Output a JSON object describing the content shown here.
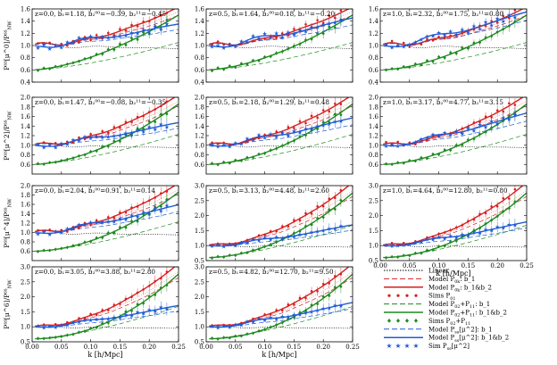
{
  "figure": {
    "xlabel": "k [h/Mpc]",
    "ylabels": [
      "P^{ss}[μ^0]/P^{ss}_{NW}",
      "P^{ss}[μ^2]/P^{ss}_{NW}",
      "P^{ss}[μ^4]/P^{ss}_{NW}",
      "P^{ss}[μ^6]/P^{ss}_{NW}"
    ],
    "colors": {
      "black": "#000000",
      "red": "#d62020",
      "blue": "#1f5bd6",
      "green": "#1f8a1f",
      "light_red": "#e88a8a",
      "light_blue": "#8fb3ee",
      "light_green": "#7fc27f"
    }
  },
  "legend": {
    "items": [
      {
        "label": "Linear",
        "color": "#000000",
        "style": "dotted"
      },
      {
        "label": "Model P_{0k}: b_1",
        "color": "#d62020",
        "style": "dashed"
      },
      {
        "label": "Model P_{0k}: b_1&b_2",
        "color": "#d62020",
        "style": "solid"
      },
      {
        "label": "Sims P_{01}",
        "color": "#d62020",
        "style": "marker"
      },
      {
        "label": "Model P_{02}+P_{11}: b_1",
        "color": "#1f8a1f",
        "style": "dashed"
      },
      {
        "label": "Model P_{02}+P_{11}: b_1&b_2",
        "color": "#1f8a1f",
        "style": "solid"
      },
      {
        "label": "Sims P_{02}+P_{11}",
        "color": "#1f8a1f",
        "style": "marker"
      },
      {
        "label": "Model P_{ss}[μ^2]: b_1",
        "color": "#1f5bd6",
        "style": "dashed"
      },
      {
        "label": "Model P_{ss}[μ^2]: b_1&b_2",
        "color": "#1f5bd6",
        "style": "solid"
      },
      {
        "label": "Sim P_{ss}[μ^2]",
        "color": "#1f5bd6",
        "style": "marker"
      }
    ]
  },
  "chart_data": [
    {
      "type": "line",
      "row": 0,
      "col": 0,
      "title": "z=0.0, b₁=1.18, b₂⁰⁰=−0.39, b₂¹¹=−0.45",
      "xlim": [
        0,
        0.25
      ],
      "ylim": [
        0.4,
        1.6
      ],
      "yticks": [
        0.4,
        0.6,
        0.8,
        1.0,
        1.2,
        1.4,
        1.6
      ]
    },
    {
      "type": "line",
      "row": 0,
      "col": 1,
      "title": "z=0.5, b₁=1.64, b₂⁰⁰=0.18, b₂¹¹=−0.20",
      "xlim": [
        0,
        0.25
      ],
      "ylim": [
        0.4,
        1.6
      ],
      "yticks": [
        0.4,
        0.6,
        0.8,
        1.0,
        1.2,
        1.4,
        1.6
      ]
    },
    {
      "type": "line",
      "row": 0,
      "col": 2,
      "title": "z=1.0, b₁=2.32, b₂⁰⁰=1.75, b₂¹¹=0.80",
      "xlim": [
        0,
        0.25
      ],
      "ylim": [
        0.4,
        1.6
      ],
      "yticks": [
        0.4,
        0.6,
        0.8,
        1.0,
        1.2,
        1.4,
        1.6
      ]
    },
    {
      "type": "line",
      "row": 1,
      "col": 0,
      "title": "z=0.0, b₁=1.47, b₂⁰⁰=−0.08, b₂¹¹=−0.35",
      "xlim": [
        0,
        0.25
      ],
      "ylim": [
        0.4,
        2.0
      ],
      "yticks": [
        0.6,
        0.8,
        1.0,
        1.2,
        1.4,
        1.6,
        1.8,
        2.0
      ]
    },
    {
      "type": "line",
      "row": 1,
      "col": 1,
      "title": "z=0.5, b₁=2.18, b₂⁰⁰=1.29, b₂¹¹=0.48",
      "xlim": [
        0,
        0.25
      ],
      "ylim": [
        0.4,
        2.0
      ],
      "yticks": [
        0.6,
        0.8,
        1.0,
        1.2,
        1.4,
        1.6,
        1.8,
        2.0
      ]
    },
    {
      "type": "line",
      "row": 1,
      "col": 2,
      "title": "z=1.0, b₁=3.17, b₂⁰⁰=4.77, b₂¹¹=3.15",
      "xlim": [
        0,
        0.25
      ],
      "ylim": [
        0.4,
        2.0
      ],
      "yticks": [
        0.6,
        0.8,
        1.0,
        1.2,
        1.4,
        1.6,
        1.8,
        2.0
      ]
    },
    {
      "type": "line",
      "row": 2,
      "col": 0,
      "title": "z=0.0, b₁=2.04, b₂⁰⁰=0.91, b₂¹¹=0.14",
      "xlim": [
        0,
        0.25
      ],
      "ylim": [
        0.4,
        2.0
      ],
      "yticks": [
        0.6,
        0.8,
        1.0,
        1.2,
        1.4,
        1.6,
        1.8,
        2.0
      ]
    },
    {
      "type": "line",
      "row": 2,
      "col": 1,
      "title": "z=0.5, b₁=3.13, b₂⁰⁰=4.48, b₂¹¹=2.60",
      "xlim": [
        0,
        0.25
      ],
      "ylim": [
        0.5,
        3.0
      ],
      "yticks": [
        0.5,
        1.0,
        1.5,
        2.0,
        2.5,
        3.0
      ]
    },
    {
      "type": "line",
      "row": 2,
      "col": 2,
      "title": "z=1.0, b₁=4.64, b₂⁰⁰=12.80, b₂¹¹=0.80",
      "xlim": [
        0,
        0.25
      ],
      "ylim": [
        0.5,
        3.0
      ],
      "yticks": [
        0.5,
        1.0,
        1.5,
        2.0,
        2.5,
        3.0
      ]
    },
    {
      "type": "line",
      "row": 3,
      "col": 0,
      "title": "z=0.0, b₁=3.05, b₂⁰⁰=3.88, b₂¹¹=2.80",
      "xlim": [
        0,
        0.25
      ],
      "ylim": [
        0.5,
        3.0
      ],
      "yticks": [
        0.5,
        1.0,
        1.5,
        2.0,
        2.5,
        3.0
      ]
    },
    {
      "type": "line",
      "row": 3,
      "col": 1,
      "title": "z=0.5, b₁=4.82, b₂⁰⁰=12.70, b₂¹¹=9.50",
      "xlim": [
        0,
        0.25
      ],
      "ylim": [
        0.5,
        3.0
      ],
      "yticks": [
        0.5,
        1.0,
        1.5,
        2.0,
        2.5,
        3.0
      ]
    }
  ]
}
